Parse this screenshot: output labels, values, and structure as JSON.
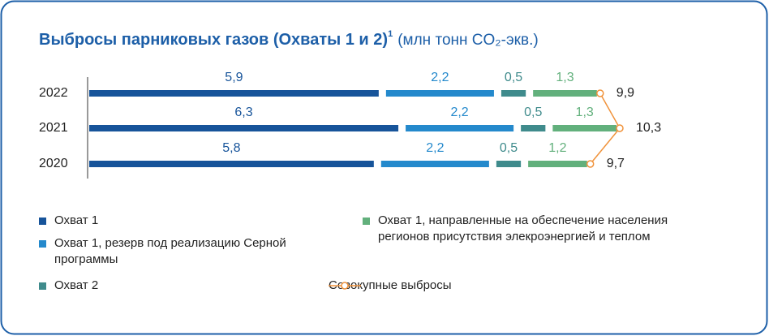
{
  "chart_data": {
    "type": "bar",
    "title": "Выбросы парниковых газов (Охваты 1 и 2)",
    "footnote": "1",
    "subtitle": "(млн тонн CO₂-экв.)",
    "categories": [
      "2022",
      "2021",
      "2020"
    ],
    "series": [
      {
        "name": "Охват 1",
        "color": "#17549a",
        "values": [
          5.9,
          6.3,
          5.8
        ],
        "value_labels": [
          "5,9",
          "6,3",
          "5,8"
        ]
      },
      {
        "name": "Охват 1, резерв под реализацию Серной программы",
        "color": "#2489cc",
        "values": [
          2.2,
          2.2,
          2.2
        ],
        "value_labels": [
          "2,2",
          "2,2",
          "2,2"
        ]
      },
      {
        "name": "Охват 2",
        "color": "#3f8b8c",
        "values": [
          0.5,
          0.5,
          0.5
        ],
        "value_labels": [
          "0,5",
          "0,5",
          "0,5"
        ]
      },
      {
        "name": "Охват 1, направленные на обеспечение населения регионов присутствия элекроэнергией и теплом",
        "color": "#62b07c",
        "values": [
          1.3,
          1.3,
          1.2
        ],
        "value_labels": [
          "1,3",
          "1,3",
          "1,2"
        ]
      }
    ],
    "total": {
      "name": "Совокупные выбросы",
      "color": "#f0923a",
      "values": [
        9.9,
        10.3,
        9.7
      ],
      "value_labels": [
        "9,9",
        "10,3",
        "9,7"
      ]
    }
  }
}
